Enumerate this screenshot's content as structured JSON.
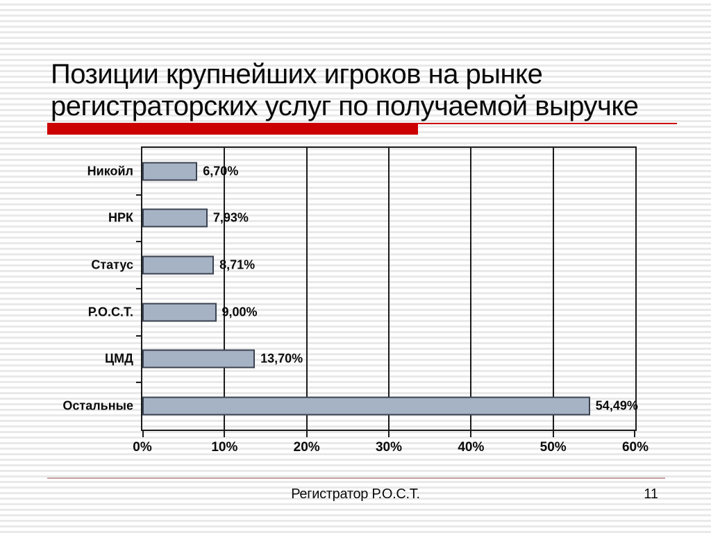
{
  "slide": {
    "title_lines": [
      "Позиции крупнейших игроков на рынке",
      "регистраторских услуг по получаемой выручке"
    ],
    "footer": {
      "text": "Регистратор Р.О.С.Т.",
      "page_number": "11"
    }
  },
  "colors": {
    "accent_red": "#cc0000",
    "bar_fill": "#a6b3c4",
    "bar_border": "#3a4250",
    "axis": "#1a1a1a",
    "stripe": "#e9e9e9",
    "footer_line": "#c9a3a3"
  },
  "chart_data": {
    "type": "bar",
    "orientation": "horizontal",
    "categories": [
      "Никойл",
      "НРК",
      "Статус",
      "Р.О.С.Т.",
      "ЦМД",
      "Остальные"
    ],
    "values": [
      6.7,
      7.93,
      8.71,
      9.0,
      13.7,
      54.49
    ],
    "value_labels": [
      "6,70%",
      "7,93%",
      "8,71%",
      "9,00%",
      "13,70%",
      "54,49%"
    ],
    "x_ticks": [
      0,
      10,
      20,
      30,
      40,
      50,
      60
    ],
    "x_tick_labels": [
      "0%",
      "10%",
      "20%",
      "30%",
      "40%",
      "50%",
      "60%"
    ],
    "xlim": [
      0,
      60
    ],
    "grid": "vertical",
    "legend": "none"
  }
}
